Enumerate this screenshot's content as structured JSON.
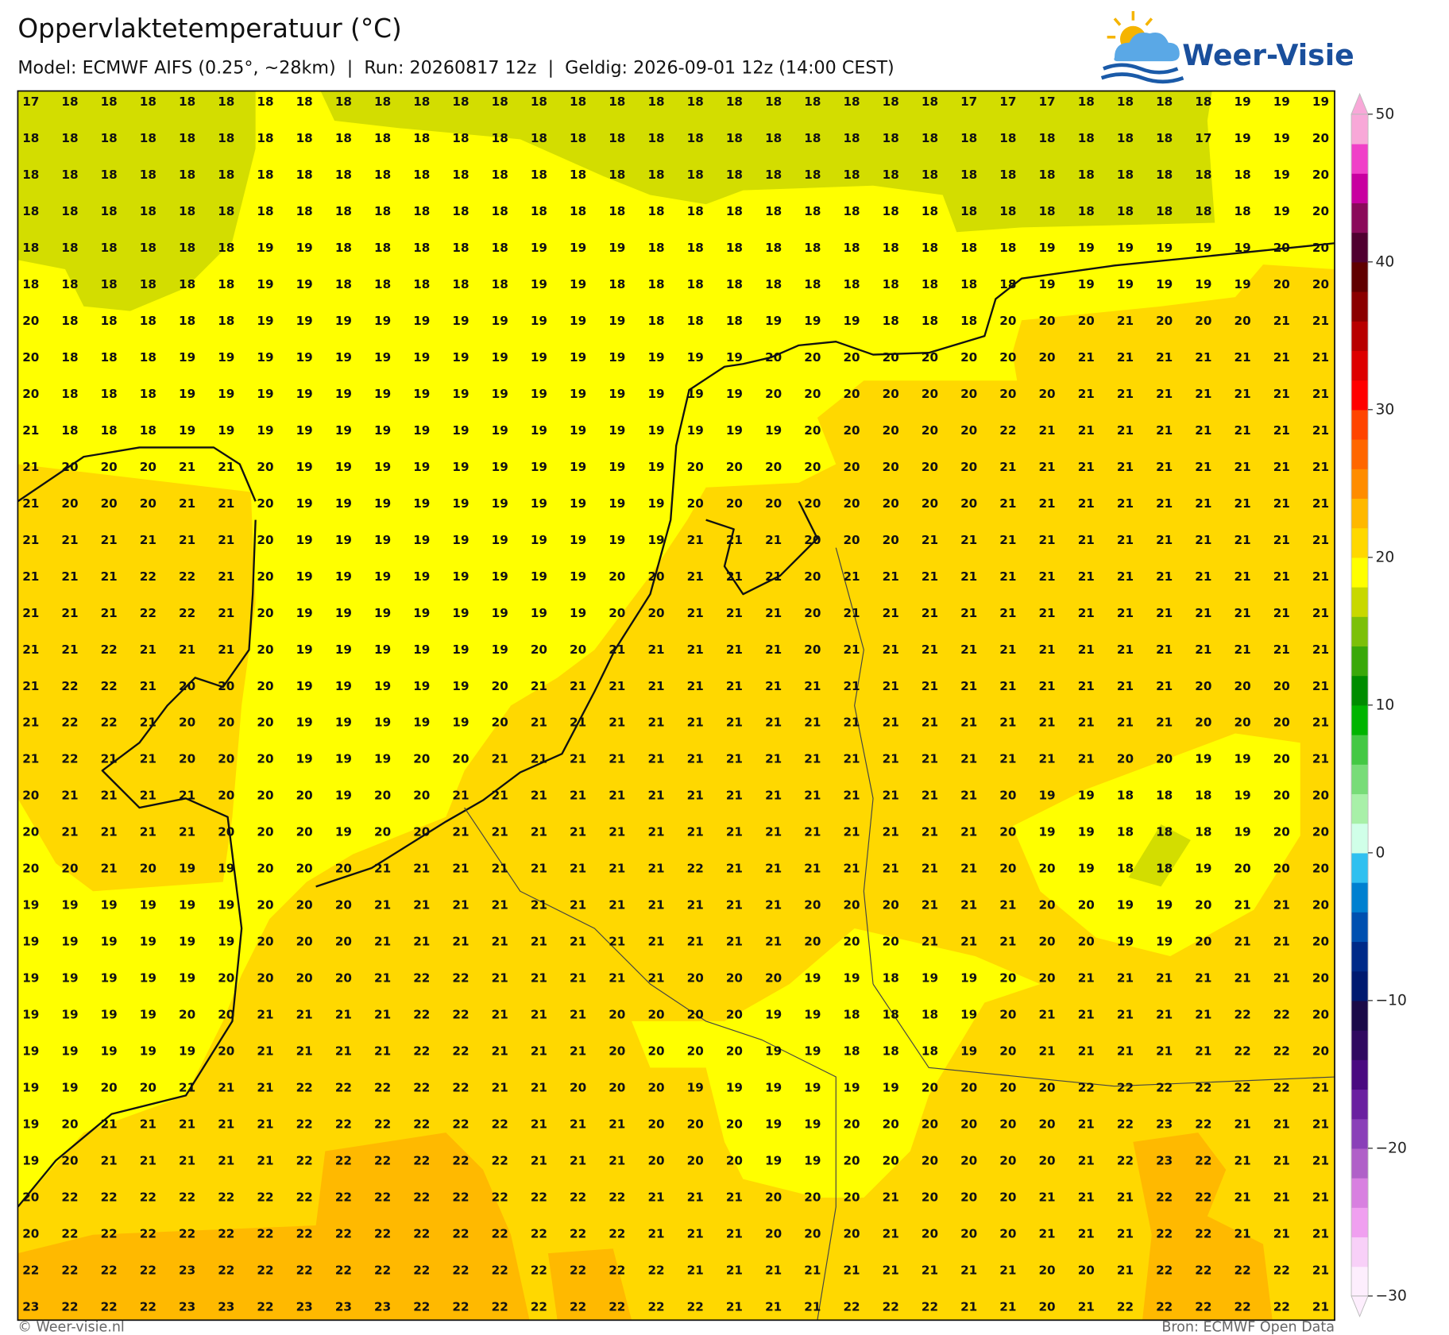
{
  "header": {
    "title": "Oppervlaktetemperatuur (°C)",
    "subtitle": "Model: ECMWF AIFS (0.25°, ~28km)  |  Run: 20260817 12z  |  Geldig: 2026-09-01 12z (14:00 CEST)"
  },
  "logo": {
    "text": "Weer-Visie"
  },
  "map": {
    "grid": [
      [
        17,
        18,
        18,
        18,
        18,
        18,
        18,
        18,
        18,
        18,
        18,
        18,
        18,
        18,
        18,
        18,
        18,
        18,
        18,
        18,
        18,
        18,
        18,
        18,
        17,
        17,
        17,
        18,
        18,
        18,
        18,
        19,
        19,
        19
      ],
      [
        18,
        18,
        18,
        18,
        18,
        18,
        18,
        18,
        18,
        18,
        18,
        18,
        18,
        18,
        18,
        18,
        18,
        18,
        18,
        18,
        18,
        18,
        18,
        18,
        18,
        18,
        18,
        18,
        18,
        18,
        17,
        19,
        19,
        20
      ],
      [
        18,
        18,
        18,
        18,
        18,
        18,
        18,
        18,
        18,
        18,
        18,
        18,
        18,
        18,
        18,
        18,
        18,
        18,
        18,
        18,
        18,
        18,
        18,
        18,
        18,
        18,
        18,
        18,
        18,
        18,
        18,
        18,
        19,
        20
      ],
      [
        18,
        18,
        18,
        18,
        18,
        18,
        18,
        18,
        18,
        18,
        18,
        18,
        18,
        18,
        18,
        18,
        18,
        18,
        18,
        18,
        18,
        18,
        18,
        18,
        18,
        18,
        18,
        18,
        18,
        18,
        18,
        18,
        19,
        20
      ],
      [
        18,
        18,
        18,
        18,
        18,
        18,
        19,
        19,
        18,
        18,
        18,
        18,
        18,
        19,
        19,
        19,
        18,
        18,
        18,
        18,
        18,
        18,
        18,
        18,
        18,
        18,
        19,
        19,
        19,
        19,
        19,
        19,
        20,
        20
      ],
      [
        18,
        18,
        18,
        18,
        18,
        18,
        19,
        19,
        18,
        18,
        18,
        18,
        18,
        19,
        19,
        18,
        18,
        18,
        18,
        18,
        18,
        18,
        18,
        18,
        18,
        18,
        19,
        19,
        19,
        19,
        19,
        19,
        20,
        20
      ],
      [
        20,
        18,
        18,
        18,
        18,
        18,
        19,
        19,
        19,
        19,
        19,
        19,
        19,
        19,
        19,
        19,
        18,
        18,
        18,
        19,
        19,
        19,
        18,
        18,
        18,
        20,
        20,
        20,
        21,
        20,
        20,
        20,
        21,
        21
      ],
      [
        20,
        18,
        18,
        18,
        19,
        19,
        19,
        19,
        19,
        19,
        19,
        19,
        19,
        19,
        19,
        19,
        19,
        19,
        19,
        20,
        20,
        20,
        20,
        20,
        20,
        20,
        20,
        21,
        21,
        21,
        21,
        21,
        21,
        21
      ],
      [
        20,
        18,
        18,
        18,
        19,
        19,
        19,
        19,
        19,
        19,
        19,
        19,
        19,
        19,
        19,
        19,
        19,
        19,
        19,
        20,
        20,
        20,
        20,
        20,
        20,
        20,
        20,
        21,
        21,
        21,
        21,
        21,
        21,
        21
      ],
      [
        21,
        18,
        18,
        18,
        19,
        19,
        19,
        19,
        19,
        19,
        19,
        19,
        19,
        19,
        19,
        19,
        19,
        19,
        19,
        19,
        20,
        20,
        20,
        20,
        20,
        22,
        21,
        21,
        21,
        21,
        21,
        21,
        21,
        21
      ],
      [
        21,
        20,
        20,
        20,
        21,
        21,
        20,
        19,
        19,
        19,
        19,
        19,
        19,
        19,
        19,
        19,
        19,
        20,
        20,
        20,
        20,
        20,
        20,
        20,
        20,
        21,
        21,
        21,
        21,
        21,
        21,
        21,
        21,
        21
      ],
      [
        21,
        20,
        20,
        20,
        21,
        21,
        20,
        19,
        19,
        19,
        19,
        19,
        19,
        19,
        19,
        19,
        19,
        20,
        20,
        20,
        20,
        20,
        20,
        20,
        20,
        21,
        21,
        21,
        21,
        21,
        21,
        21,
        21,
        21
      ],
      [
        21,
        21,
        21,
        21,
        21,
        21,
        20,
        19,
        19,
        19,
        19,
        19,
        19,
        19,
        19,
        19,
        19,
        21,
        21,
        21,
        20,
        20,
        20,
        21,
        21,
        21,
        21,
        21,
        21,
        21,
        21,
        21,
        21,
        21
      ],
      [
        21,
        21,
        21,
        22,
        22,
        21,
        20,
        19,
        19,
        19,
        19,
        19,
        19,
        19,
        19,
        20,
        20,
        21,
        21,
        21,
        20,
        21,
        21,
        21,
        21,
        21,
        21,
        21,
        21,
        21,
        21,
        21,
        21,
        21
      ],
      [
        21,
        21,
        21,
        22,
        22,
        21,
        20,
        19,
        19,
        19,
        19,
        19,
        19,
        19,
        19,
        20,
        20,
        21,
        21,
        21,
        20,
        21,
        21,
        21,
        21,
        21,
        21,
        21,
        21,
        21,
        21,
        21,
        21,
        21
      ],
      [
        21,
        21,
        22,
        21,
        21,
        21,
        20,
        19,
        19,
        19,
        19,
        19,
        19,
        20,
        20,
        21,
        21,
        21,
        21,
        21,
        20,
        21,
        21,
        21,
        21,
        21,
        21,
        21,
        21,
        21,
        21,
        21,
        21,
        21
      ],
      [
        21,
        22,
        22,
        21,
        20,
        20,
        20,
        19,
        19,
        19,
        19,
        19,
        20,
        21,
        21,
        21,
        21,
        21,
        21,
        21,
        21,
        21,
        21,
        21,
        21,
        21,
        21,
        21,
        21,
        21,
        20,
        20,
        20,
        21
      ],
      [
        21,
        22,
        22,
        21,
        20,
        20,
        20,
        19,
        19,
        19,
        19,
        19,
        20,
        21,
        21,
        21,
        21,
        21,
        21,
        21,
        21,
        21,
        21,
        21,
        21,
        21,
        21,
        21,
        21,
        21,
        20,
        20,
        20,
        21
      ],
      [
        21,
        22,
        21,
        21,
        20,
        20,
        20,
        19,
        19,
        19,
        20,
        20,
        21,
        21,
        21,
        21,
        21,
        21,
        21,
        21,
        21,
        21,
        21,
        21,
        21,
        21,
        21,
        21,
        20,
        20,
        19,
        19,
        20,
        21
      ],
      [
        20,
        21,
        21,
        21,
        21,
        20,
        20,
        20,
        19,
        20,
        20,
        21,
        21,
        21,
        21,
        21,
        21,
        21,
        21,
        21,
        21,
        21,
        21,
        21,
        21,
        20,
        19,
        19,
        18,
        18,
        18,
        19,
        20,
        20
      ],
      [
        20,
        21,
        21,
        21,
        21,
        20,
        20,
        20,
        19,
        20,
        20,
        21,
        21,
        21,
        21,
        21,
        21,
        21,
        21,
        21,
        21,
        21,
        21,
        21,
        21,
        20,
        19,
        19,
        18,
        18,
        18,
        19,
        20,
        20
      ],
      [
        20,
        20,
        21,
        20,
        19,
        19,
        20,
        20,
        20,
        21,
        21,
        21,
        21,
        21,
        21,
        21,
        21,
        22,
        21,
        21,
        21,
        21,
        21,
        21,
        21,
        20,
        20,
        19,
        18,
        18,
        19,
        20,
        20,
        20
      ],
      [
        19,
        19,
        19,
        19,
        19,
        19,
        20,
        20,
        20,
        21,
        21,
        21,
        21,
        21,
        21,
        21,
        21,
        21,
        21,
        21,
        20,
        20,
        20,
        21,
        21,
        21,
        20,
        20,
        19,
        19,
        20,
        21,
        21,
        20
      ],
      [
        19,
        19,
        19,
        19,
        19,
        19,
        20,
        20,
        20,
        21,
        21,
        21,
        21,
        21,
        21,
        21,
        21,
        21,
        21,
        21,
        20,
        20,
        20,
        21,
        21,
        21,
        20,
        20,
        19,
        19,
        20,
        21,
        21,
        20
      ],
      [
        19,
        19,
        19,
        19,
        19,
        20,
        20,
        20,
        20,
        21,
        22,
        22,
        21,
        21,
        21,
        21,
        21,
        20,
        20,
        20,
        19,
        19,
        18,
        19,
        19,
        20,
        20,
        21,
        21,
        21,
        21,
        21,
        21,
        20
      ],
      [
        19,
        19,
        19,
        19,
        20,
        20,
        21,
        21,
        21,
        21,
        22,
        22,
        21,
        21,
        21,
        20,
        20,
        20,
        20,
        19,
        19,
        18,
        18,
        18,
        19,
        20,
        21,
        21,
        21,
        21,
        21,
        22,
        22,
        20
      ],
      [
        19,
        19,
        19,
        19,
        19,
        20,
        21,
        21,
        21,
        21,
        22,
        22,
        21,
        21,
        21,
        20,
        20,
        20,
        20,
        19,
        19,
        18,
        18,
        18,
        19,
        20,
        21,
        21,
        21,
        21,
        21,
        22,
        22,
        20
      ],
      [
        19,
        19,
        20,
        20,
        21,
        21,
        21,
        22,
        22,
        22,
        22,
        22,
        21,
        21,
        20,
        20,
        20,
        19,
        19,
        19,
        19,
        19,
        19,
        20,
        20,
        20,
        20,
        22,
        22,
        22,
        22,
        22,
        22,
        21
      ],
      [
        19,
        20,
        21,
        21,
        21,
        21,
        21,
        22,
        22,
        22,
        22,
        22,
        22,
        21,
        21,
        21,
        20,
        20,
        20,
        19,
        19,
        20,
        20,
        20,
        20,
        20,
        20,
        21,
        22,
        23,
        22,
        21,
        21,
        21
      ],
      [
        19,
        20,
        21,
        21,
        21,
        21,
        21,
        22,
        22,
        22,
        22,
        22,
        22,
        21,
        21,
        21,
        20,
        20,
        20,
        19,
        19,
        20,
        20,
        20,
        20,
        20,
        20,
        21,
        22,
        23,
        22,
        21,
        21,
        21
      ],
      [
        20,
        22,
        22,
        22,
        22,
        22,
        22,
        22,
        22,
        22,
        22,
        22,
        22,
        22,
        22,
        22,
        21,
        21,
        21,
        20,
        20,
        20,
        21,
        20,
        20,
        20,
        21,
        21,
        21,
        22,
        22,
        21,
        21,
        21
      ],
      [
        20,
        22,
        22,
        22,
        22,
        22,
        22,
        22,
        22,
        22,
        22,
        22,
        22,
        22,
        22,
        22,
        21,
        21,
        21,
        20,
        20,
        20,
        21,
        20,
        20,
        20,
        21,
        21,
        21,
        22,
        22,
        21,
        21,
        21
      ],
      [
        22,
        22,
        22,
        22,
        23,
        22,
        22,
        22,
        22,
        22,
        22,
        22,
        22,
        22,
        22,
        22,
        22,
        21,
        21,
        21,
        21,
        21,
        21,
        21,
        21,
        21,
        20,
        20,
        21,
        22,
        22,
        22,
        22,
        21
      ],
      [
        23,
        22,
        22,
        22,
        23,
        23,
        22,
        23,
        23,
        23,
        22,
        22,
        22,
        22,
        22,
        22,
        22,
        22,
        21,
        21,
        21,
        22,
        22,
        22,
        21,
        21,
        20,
        21,
        22,
        22,
        22,
        22,
        22,
        21
      ]
    ]
  },
  "colorbar": {
    "lim": [
      -30,
      50
    ],
    "ticks": [
      50,
      40,
      30,
      20,
      10,
      0,
      {
        "value": -10,
        "label": "−10"
      },
      {
        "value": -20,
        "label": "−20"
      },
      {
        "value": -30,
        "label": "−30"
      }
    ],
    "colors": [
      "#fdeefd",
      "#f8d0f8",
      "#f0a0f0",
      "#d880e0",
      "#b060c8",
      "#8a40b8",
      "#6a20a0",
      "#4a0a80",
      "#300a60",
      "#1a0a48",
      "#001a70",
      "#002a88",
      "#0050b0",
      "#0080d0",
      "#30c0f0",
      "#d0ffe8",
      "#a8f0a8",
      "#78dc78",
      "#44c844",
      "#00b400",
      "#008c00",
      "#3aa80a",
      "#7cc00a",
      "#c8d800",
      "#ffff00",
      "#ffd800",
      "#ffb800",
      "#ff8c00",
      "#ff6600",
      "#ff4400",
      "#ff0000",
      "#dd0000",
      "#b80000",
      "#8a0000",
      "#600000",
      "#500030",
      "#8a0a5a",
      "#c800a0",
      "#f040c8",
      "#f8a8d8"
    ]
  },
  "footer": {
    "left": "© Weer-visie.nl",
    "right": "Bron: ECMWF Open Data"
  }
}
